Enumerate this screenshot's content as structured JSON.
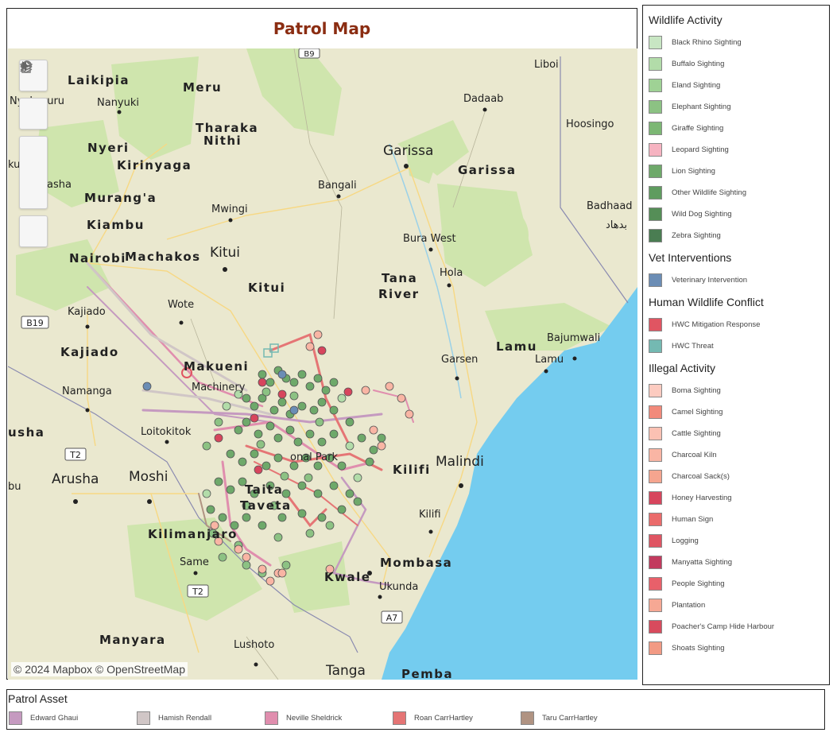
{
  "map": {
    "title": "Patrol Map",
    "attribution": "© 2024 Mapbox  © OpenStreetMap",
    "road_shields": [
      "B9",
      "B19",
      "T2",
      "T2",
      "A7"
    ],
    "labels": {
      "laikipia": "Laikipia",
      "meru": "Meru",
      "liboi": "Liboi",
      "nyahururu": "Nyahururu",
      "nanyuki": "Nanyuki",
      "dadaab": "Dadaab",
      "hoosingo": "Hoosingo",
      "tharaka": "Tharaka",
      "nithi": "Nithi",
      "nyeri": "Nyeri",
      "kirinyaga": "Kirinyaga",
      "garissa_city": "Garissa",
      "garissa_region": "Garissa",
      "naivasha": "Naivasha",
      "murang": "Murang'a",
      "mwingi": "Mwingi",
      "bangali": "Bangali",
      "badhaad": "Badhaad",
      "badhaad_ar": "بدهاد",
      "kiambu": "Kiambu",
      "bura_west": "Bura West",
      "nairobi": "Nairobi",
      "machakos": "Machakos",
      "kitui_city": "Kitui",
      "kitui_region": "Kitui",
      "tana": "Tana",
      "river": "River",
      "hola": "Hola",
      "kajiado_city": "Kajiado",
      "wote": "Wote",
      "bajumwali": "Bajumwali",
      "kajiado_region": "Kajiado",
      "makueni": "Makueni",
      "lamu_region": "Lamu",
      "lamu_city": "Lamu",
      "garsen": "Garsen",
      "machinery": "Machinery",
      "namanga": "Namanga",
      "usha": "usha",
      "loitokitok": "Loitokitok",
      "kilifi_region": "Kilifi",
      "malindi": "Malindi",
      "arusha": "Arusha",
      "moshi": "Moshi",
      "taita": "Taita",
      "taveta": "Taveta",
      "kilifi_city": "Kilifi",
      "kilimanjaro": "Kilimanjaro",
      "same": "Same",
      "mombasa": "Mombasa",
      "kwale": "Kwale",
      "ukunda": "Ukunda",
      "manyara": "Manyara",
      "lushoto": "Lushoto",
      "tanga": "Tanga",
      "pemba": "Pemba",
      "bu": "bu",
      "ku": "ku",
      "national_park": "onal Park"
    }
  },
  "legend": {
    "sections": [
      {
        "heading": "Wildlife Activity",
        "items": [
          {
            "label": "Black Rhino Sighting",
            "color": "#c8e6c3"
          },
          {
            "label": "Buffalo Sighting",
            "color": "#b2dca9"
          },
          {
            "label": "Eland Sighting",
            "color": "#9fd295"
          },
          {
            "label": "Elephant Sighting",
            "color": "#8cc283"
          },
          {
            "label": "Giraffe Sighting",
            "color": "#7cb774"
          },
          {
            "label": "Leopard Sighting",
            "color": "#f6b3c1"
          },
          {
            "label": "Lion Sighting",
            "color": "#6ea96a"
          },
          {
            "label": "Other Wildlife Sighting",
            "color": "#5f9c5f"
          },
          {
            "label": "Wild Dog Sighting",
            "color": "#558e57"
          },
          {
            "label": "Zebra Sighting",
            "color": "#4a7d52"
          }
        ]
      },
      {
        "heading": "Vet Interventions",
        "items": [
          {
            "label": "Veterinary Intervention",
            "color": "#6b8db5"
          }
        ]
      },
      {
        "heading": "Human Wildlife Conflict",
        "items": [
          {
            "label": "HWC Mitigation Response",
            "color": "#e05562"
          },
          {
            "label": "HWC Threat",
            "color": "#74b9b2"
          }
        ]
      },
      {
        "heading": "Illegal Activity",
        "items": [
          {
            "label": "Boma Sighting",
            "color": "#fccbc0"
          },
          {
            "label": "Camel Sighting",
            "color": "#f28a7b"
          },
          {
            "label": "Cattle Sighting",
            "color": "#fbc1b3"
          },
          {
            "label": "Charcoal Kiln",
            "color": "#f9b5a4"
          },
          {
            "label": "Charcoal Sack(s)",
            "color": "#f5a58f"
          },
          {
            "label": "Honey Harvesting",
            "color": "#d7455d"
          },
          {
            "label": "Human Sign",
            "color": "#ea6b6b"
          },
          {
            "label": "Logging",
            "color": "#df5563"
          },
          {
            "label": "Manyatta Sighting",
            "color": "#c23a5e"
          },
          {
            "label": "People Sighting",
            "color": "#e8606a"
          },
          {
            "label": "Plantation",
            "color": "#f6a894"
          },
          {
            "label": "Poacher's Camp Hide Harbour",
            "color": "#d84b5d"
          },
          {
            "label": "Shoats Sighting",
            "color": "#f29a84"
          }
        ]
      }
    ]
  },
  "patrol_assets": {
    "heading": "Patrol Asset",
    "items": [
      {
        "label": "Edward Ghaui",
        "color": "#c59ac0"
      },
      {
        "label": "Hamish Rendall",
        "color": "#d0c6c6"
      },
      {
        "label": "Neville Sheldrick",
        "color": "#e08eae"
      },
      {
        "label": "Roan CarrHartley",
        "color": "#e57575"
      },
      {
        "label": "Taru CarrHartley",
        "color": "#b09382"
      }
    ]
  },
  "colors": {
    "land": "#eae8cf",
    "park": "#cfe5ad",
    "ocean": "#74ccef",
    "title": "#8b2d12"
  },
  "icons": [
    "search-icon",
    "layers-icon",
    "zoom-in-icon",
    "zoom-out-icon",
    "home-icon",
    "play-icon"
  ]
}
